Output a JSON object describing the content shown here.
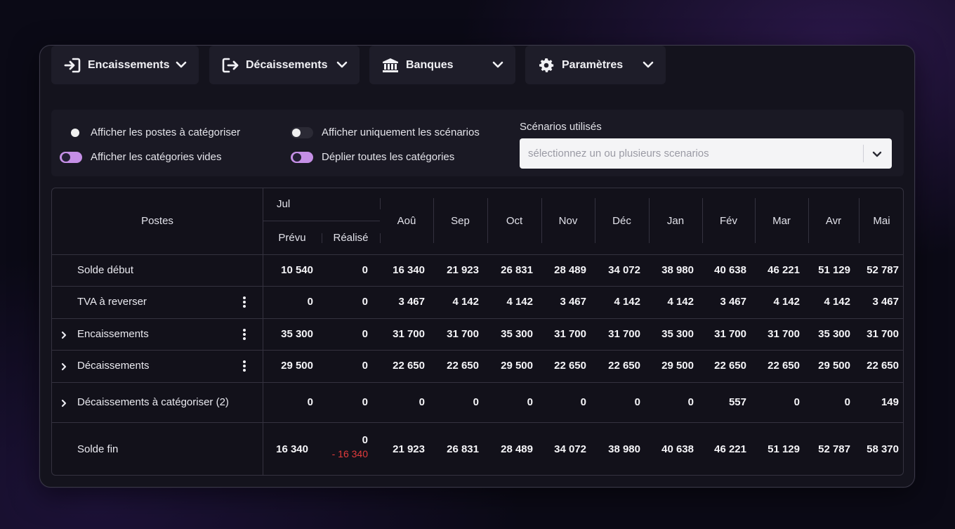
{
  "tabs": [
    {
      "label": "Encaissements",
      "icon": "sign-in-icon"
    },
    {
      "label": "Décaissements",
      "icon": "sign-out-icon"
    },
    {
      "label": "Banques",
      "icon": "bank-icon"
    },
    {
      "label": "Paramètres",
      "icon": "gear-icon"
    }
  ],
  "options": {
    "show_to_categorize": {
      "label": "Afficher les postes à catégoriser",
      "on": false
    },
    "show_empty_categories": {
      "label": "Afficher les catégories vides",
      "on": true
    },
    "show_only_scenarios": {
      "label": "Afficher uniquement les scénarios",
      "on": false
    },
    "expand_all_categories": {
      "label": "Déplier toutes les catégories",
      "on": true
    }
  },
  "scenarios": {
    "label": "Scénarios utilisés",
    "placeholder": "sélectionnez un ou plusieurs scenarios"
  },
  "table": {
    "postes_header": "Postes",
    "first_month": "Jul",
    "sub_planned": "Prévu",
    "sub_actual": "Réalisé",
    "months": [
      "Aoû",
      "Sep",
      "Oct",
      "Nov",
      "Déc",
      "Jan",
      "Fév",
      "Mar",
      "Avr",
      "Mai"
    ],
    "rows": [
      {
        "label": "Solde début",
        "expandable": false,
        "menu": false,
        "prevu": "10 540",
        "realise": "0",
        "values": [
          "16 340",
          "21 923",
          "26 831",
          "28 489",
          "34 072",
          "38 980",
          "40 638",
          "46 221",
          "51 129",
          "52 787"
        ]
      },
      {
        "label": "TVA à reverser",
        "expandable": false,
        "menu": true,
        "prevu": "0",
        "realise": "0",
        "values": [
          "3 467",
          "4 142",
          "4 142",
          "3 467",
          "4 142",
          "4 142",
          "3 467",
          "4 142",
          "4 142",
          "3 467"
        ]
      },
      {
        "label": "Encaissements",
        "expandable": true,
        "menu": true,
        "prevu": "35 300",
        "realise": "0",
        "values": [
          "31 700",
          "31 700",
          "35 300",
          "31 700",
          "31 700",
          "35 300",
          "31 700",
          "31 700",
          "35 300",
          "31 700"
        ]
      },
      {
        "label": "Décaissements",
        "expandable": true,
        "menu": true,
        "prevu": "29 500",
        "realise": "0",
        "values": [
          "22 650",
          "22 650",
          "29 500",
          "22 650",
          "22 650",
          "29 500",
          "22 650",
          "22 650",
          "29 500",
          "22 650"
        ]
      },
      {
        "label": "Décaissements à catégoriser (2)",
        "expandable": true,
        "menu": false,
        "prevu": "0",
        "realise": "0",
        "values": [
          "0",
          "0",
          "0",
          "0",
          "0",
          "0",
          "557",
          "0",
          "0",
          "149"
        ]
      },
      {
        "label": "Solde fin",
        "expandable": false,
        "menu": false,
        "prevu": "16 340",
        "realise": "0",
        "realise_delta": "- 16 340",
        "values": [
          "21 923",
          "26 831",
          "28 489",
          "34 072",
          "38 980",
          "40 638",
          "46 221",
          "51 129",
          "52 787",
          "58 370"
        ]
      }
    ]
  },
  "colors": {
    "accent": "#c58fe6",
    "negative": "#e23b3b",
    "panel": "#14131d"
  }
}
